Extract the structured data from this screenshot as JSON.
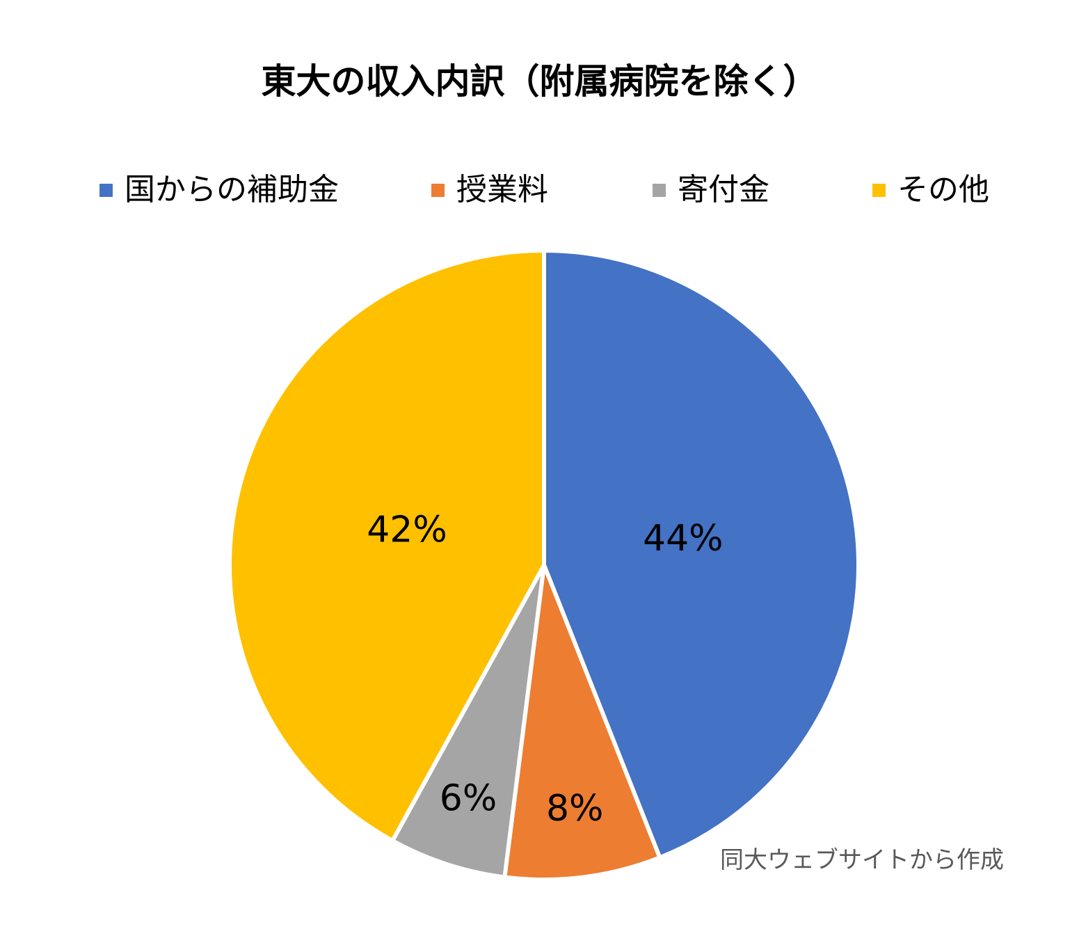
{
  "chart_data": {
    "type": "pie",
    "title": "東大の収入内訳（附属病院を除く）",
    "legend_position": "top",
    "categories": [
      "国からの補助金",
      "授業料",
      "寄付金",
      "その他"
    ],
    "values": [
      44,
      8,
      6,
      42
    ],
    "value_labels": [
      "44%",
      "8%",
      "6%",
      "42%"
    ],
    "colors": [
      "#4472C4",
      "#ED7D31",
      "#A5A5A5",
      "#FFC000"
    ],
    "start_angle": "12 o'clock",
    "direction": "clockwise"
  },
  "source_note": "同大ウェブサイトから作成"
}
